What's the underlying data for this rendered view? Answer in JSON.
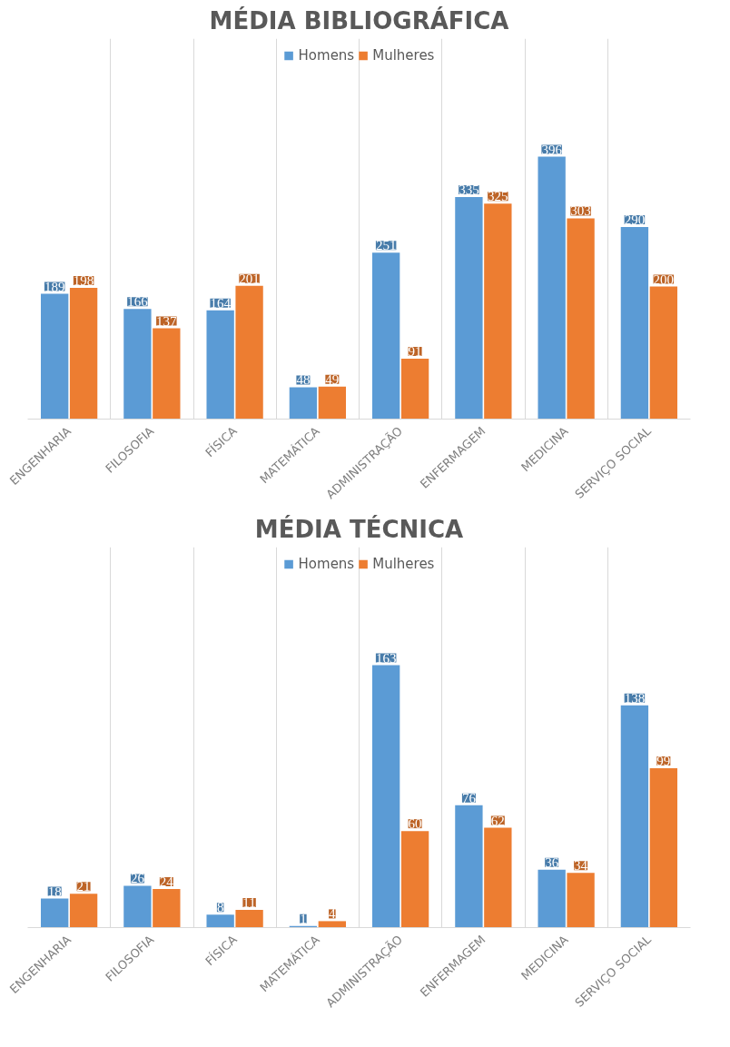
{
  "chart_data": [
    {
      "type": "bar",
      "title": "MÉDIA BIBLIOGRÁFICA",
      "categories": [
        "ENGENHARIA",
        "FILOSOFIA",
        "FÍSICA",
        "MATEMÁTICA",
        "ADMINISTRAÇÃO",
        "ENFERMAGEM",
        "MEDICINA",
        "SERVIÇO SOCIAL"
      ],
      "series": [
        {
          "name": "Homens",
          "color": "#5b9bd5",
          "values": [
            189,
            166,
            164,
            48,
            251,
            335,
            396,
            290
          ]
        },
        {
          "name": "Mulheres",
          "color": "#ed7d31",
          "values": [
            198,
            137,
            201,
            49,
            91,
            325,
            303,
            200
          ]
        }
      ],
      "data_labels": true,
      "legend": "top",
      "grid": "x"
    },
    {
      "type": "bar",
      "title": "MÉDIA TÉCNICA",
      "categories": [
        "ENGENHARIA",
        "FILOSOFIA",
        "FÍSICA",
        "MATEMÁTICA",
        "ADMINISTRAÇÃO",
        "ENFERMAGEM",
        "MEDICINA",
        "SERVIÇO SOCIAL"
      ],
      "series": [
        {
          "name": "Homens",
          "color": "#5b9bd5",
          "values": [
            18,
            26,
            8,
            1,
            163,
            76,
            36,
            138
          ]
        },
        {
          "name": "Mulheres",
          "color": "#ed7d31",
          "values": [
            21,
            24,
            11,
            4,
            60,
            62,
            34,
            99
          ]
        }
      ],
      "data_labels": true,
      "legend": "top",
      "grid": "x"
    }
  ]
}
